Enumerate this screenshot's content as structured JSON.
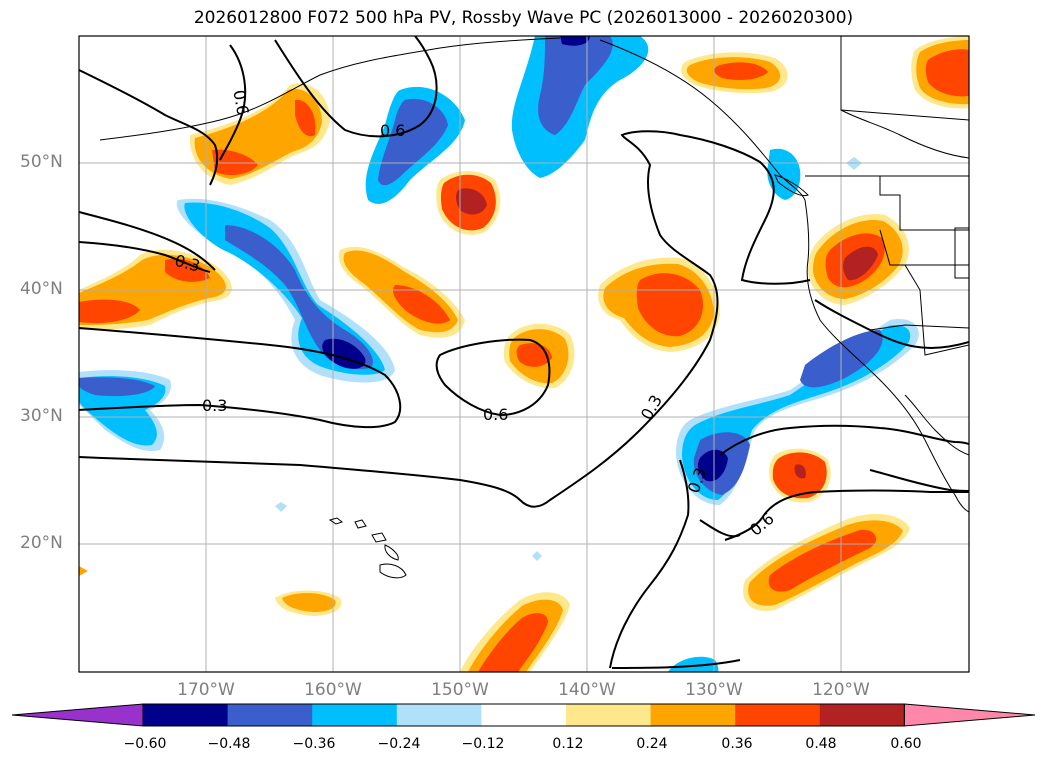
{
  "title": "2026012800 F072 500 hPa PV, Rossby Wave PC (2026013000 - 2026020300)",
  "lat_labels": [
    "50°N",
    "40°N",
    "30°N",
    "20°N"
  ],
  "lon_labels": [
    "170°W",
    "160°W",
    "150°W",
    "140°W",
    "130°W",
    "120°W"
  ],
  "contour_labels": [
    "0.6",
    "0.6",
    "0.3",
    "0.3",
    "0.6",
    "0.3",
    "0.6",
    "0.3"
  ],
  "colorbar": {
    "ticks": [
      "−0.60",
      "−0.48",
      "−0.36",
      "−0.24",
      "−0.12",
      "0.12",
      "0.24",
      "0.36",
      "0.48",
      "0.60"
    ],
    "colors": [
      "#9932cc",
      "#00008b",
      "#3a5fcd",
      "#00bfff",
      "#b0e0fa",
      "#ffffff",
      "#ffe88c",
      "#ffa500",
      "#ff4500",
      "#b22222",
      "#ff88aa"
    ]
  },
  "colors": {
    "neg_strong": "#00008b",
    "neg_med": "#3a5fcd",
    "neg_weak": "#00bfff",
    "neg_light": "#b0e0fa",
    "pos_light": "#ffe88c",
    "pos_weak": "#ffa500",
    "pos_med": "#ff4500",
    "pos_strong": "#b22222",
    "grid": "#b0b0b0",
    "label_grey": "#7f7f7f"
  }
}
